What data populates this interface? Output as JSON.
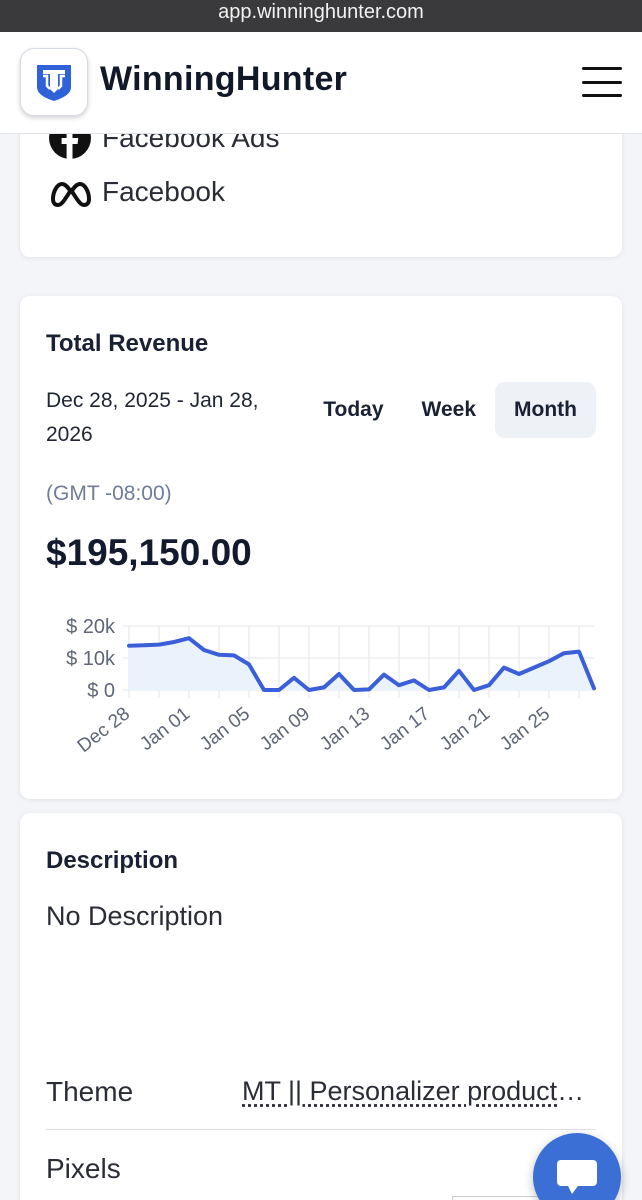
{
  "browser": {
    "url": "app.winninghunter.com"
  },
  "header": {
    "brand": "WinningHunter"
  },
  "sources": [
    {
      "icon": "facebook-icon",
      "label": "Facebook Ads"
    },
    {
      "icon": "meta-icon",
      "label": "Facebook"
    }
  ],
  "revenue": {
    "title": "Total Revenue",
    "date_range": "Dec 28, 2025 - Jan 28, 2026",
    "tabs": [
      "Today",
      "Week",
      "Month"
    ],
    "active_tab": "Month",
    "timezone": "(GMT -08:00)",
    "total": "$195,150.00"
  },
  "chart_data": {
    "type": "area",
    "x": [
      "Dec 28",
      "Dec 29",
      "Dec 30",
      "Dec 31",
      "Jan 01",
      "Jan 02",
      "Jan 03",
      "Jan 04",
      "Jan 05",
      "Jan 06",
      "Jan 07",
      "Jan 08",
      "Jan 09",
      "Jan 10",
      "Jan 11",
      "Jan 12",
      "Jan 13",
      "Jan 14",
      "Jan 15",
      "Jan 16",
      "Jan 17",
      "Jan 18",
      "Jan 19",
      "Jan 20",
      "Jan 21",
      "Jan 22",
      "Jan 23",
      "Jan 24",
      "Jan 25",
      "Jan 26",
      "Jan 27",
      "Jan 28"
    ],
    "values": [
      13800,
      14000,
      14200,
      15000,
      16200,
      12500,
      11000,
      10800,
      8000,
      0,
      0,
      3800,
      0,
      800,
      5000,
      0,
      200,
      4800,
      1500,
      3000,
      0,
      800,
      6000,
      0,
      1500,
      7000,
      5000,
      7000,
      9000,
      11500,
      12000,
      500
    ],
    "ytick_labels": [
      "$ 20k",
      "$ 10k",
      "$ 0"
    ],
    "ylim": [
      0,
      20000
    ],
    "xtick_labels": [
      "Dec 28",
      "Jan 01",
      "Jan 05",
      "Jan 09",
      "Jan 13",
      "Jan 17",
      "Jan 21",
      "Jan 25"
    ],
    "line_color": "#3b5fd9",
    "fill_color": "#eaf3fb"
  },
  "description": {
    "title": "Description",
    "text": "No Description",
    "theme_label": "Theme",
    "theme_value": "MT || Personalizer product page",
    "pixels_label": "Pixels"
  }
}
